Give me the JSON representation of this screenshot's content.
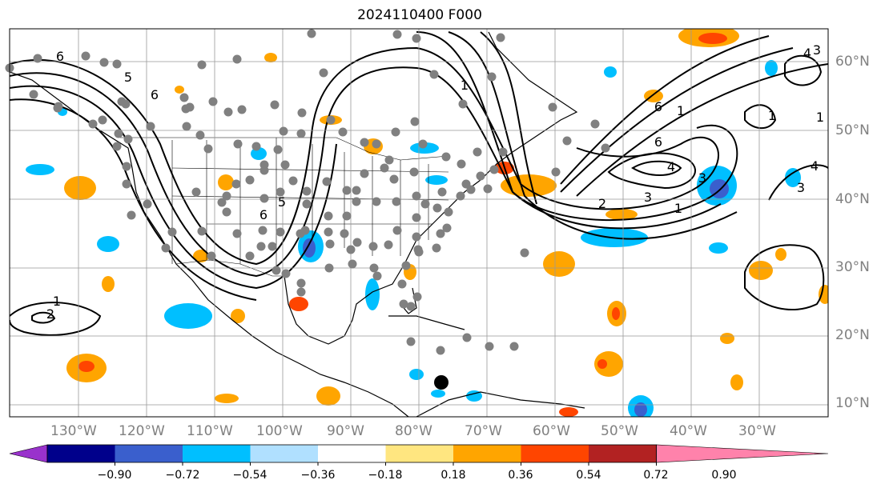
{
  "title": "2024110400 F000",
  "lat_labels": [
    "60°N",
    "50°N",
    "40°N",
    "30°N",
    "20°N",
    "10°N"
  ],
  "lon_labels": [
    "130°W",
    "120°W",
    "110°W",
    "100°W",
    "90°W",
    "80°W",
    "70°W",
    "60°W",
    "50°W",
    "40°W",
    "30°W"
  ],
  "colorbar": {
    "colors": [
      "#9932cc",
      "#00008b",
      "#3a5fcd",
      "#00bfff",
      "#b0e0ff",
      "#ffffff",
      "#ffe680",
      "#ffa500",
      "#ff4500",
      "#b22222",
      "#ff82ab"
    ],
    "tick_labels": [
      "−0.90",
      "−0.72",
      "−0.54",
      "−0.36",
      "−0.18",
      "0.18",
      "0.36",
      "0.54",
      "0.72",
      "0.90"
    ]
  },
  "contour_labels": [
    "6",
    "5",
    "1",
    "6",
    "6",
    "1",
    "6",
    "4",
    "3",
    "6",
    "5",
    "1",
    "3",
    "2",
    "3",
    "4",
    "4",
    "3",
    "1",
    "2",
    "1",
    "1"
  ],
  "symbols": {
    "station_dot_color": "#808080",
    "marker_color": "#000000"
  }
}
